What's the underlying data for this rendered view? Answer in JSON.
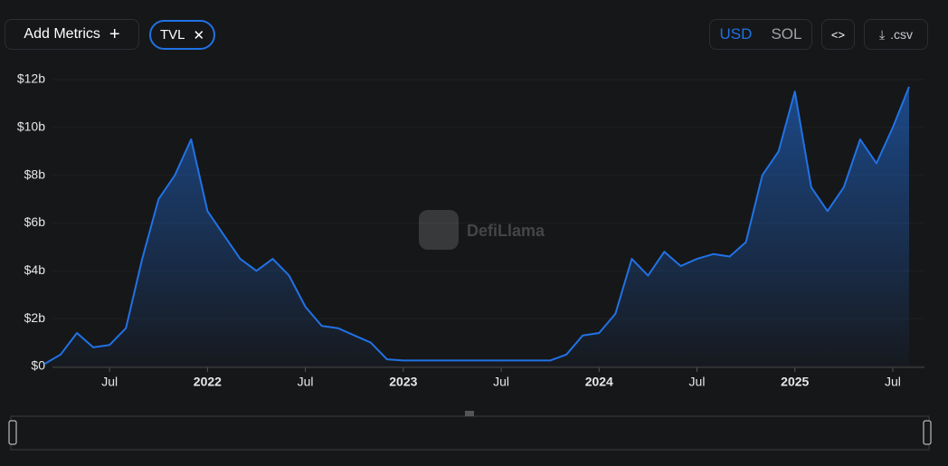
{
  "controls": {
    "add_metrics": "Add Metrics",
    "metric_chip": "TVL",
    "currency_options": [
      "USD",
      "SOL"
    ],
    "csv": ".csv"
  },
  "watermark": "DefiLlama",
  "chart_data": {
    "type": "area",
    "color": "#2172e5",
    "grid": true,
    "x": [
      "2021-03",
      "2021-04",
      "2021-05",
      "2021-06",
      "2021-07",
      "2021-08",
      "2021-09",
      "2021-10",
      "2021-11",
      "2021-12",
      "2022-01",
      "2022-02",
      "2022-03",
      "2022-04",
      "2022-05",
      "2022-06",
      "2022-07",
      "2022-08",
      "2022-09",
      "2022-10",
      "2022-11",
      "2022-12",
      "2023-01",
      "2023-02",
      "2023-03",
      "2023-04",
      "2023-05",
      "2023-06",
      "2023-07",
      "2023-08",
      "2023-09",
      "2023-10",
      "2023-11",
      "2023-12",
      "2024-01",
      "2024-02",
      "2024-03",
      "2024-04",
      "2024-05",
      "2024-06",
      "2024-07",
      "2024-08",
      "2024-09",
      "2024-10",
      "2024-11",
      "2024-12",
      "2025-01",
      "2025-02",
      "2025-03",
      "2025-04",
      "2025-05",
      "2025-06",
      "2025-07",
      "2025-08"
    ],
    "series": [
      {
        "name": "TVL",
        "color": "#2172e5",
        "values": [
          0.1,
          0.5,
          1.4,
          0.8,
          0.9,
          1.6,
          4.5,
          7.0,
          8.0,
          9.5,
          6.5,
          5.5,
          4.5,
          4.0,
          4.5,
          3.8,
          2.5,
          1.7,
          1.6,
          1.3,
          1.0,
          0.3,
          0.25,
          0.25,
          0.25,
          0.25,
          0.25,
          0.25,
          0.25,
          0.25,
          0.25,
          0.25,
          0.5,
          1.3,
          1.4,
          2.2,
          4.5,
          3.8,
          4.8,
          4.2,
          4.5,
          4.7,
          4.6,
          5.2,
          8.0,
          9.0,
          11.5,
          7.5,
          6.5,
          7.5,
          9.5,
          8.5,
          10.0,
          11.7
        ]
      }
    ],
    "xlim": [
      "2021-03",
      "2025-08"
    ],
    "xticks": [
      {
        "value": "2021-07",
        "label": "Jul"
      },
      {
        "value": "2022-01",
        "label": "2022"
      },
      {
        "value": "2022-07",
        "label": "Jul"
      },
      {
        "value": "2023-01",
        "label": "2023"
      },
      {
        "value": "2023-07",
        "label": "Jul"
      },
      {
        "value": "2024-01",
        "label": "2024"
      },
      {
        "value": "2024-07",
        "label": "Jul"
      },
      {
        "value": "2025-01",
        "label": "2025"
      },
      {
        "value": "2025-07",
        "label": "Jul"
      }
    ],
    "ylim": [
      0,
      12
    ],
    "yticks": [
      {
        "value": 0,
        "label": "$0"
      },
      {
        "value": 2,
        "label": "$2b"
      },
      {
        "value": 4,
        "label": "$4b"
      },
      {
        "value": 6,
        "label": "$6b"
      },
      {
        "value": 8,
        "label": "$8b"
      },
      {
        "value": 10,
        "label": "$10b"
      },
      {
        "value": 12,
        "label": "$12b"
      }
    ]
  }
}
